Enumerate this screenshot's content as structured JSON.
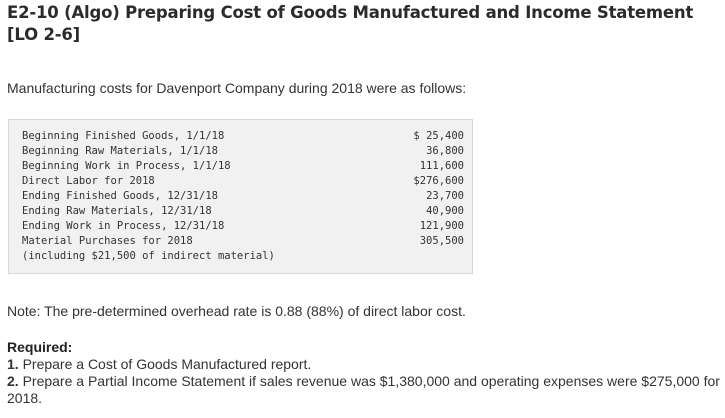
{
  "title": "E2-10 (Algo) Preparing Cost of Goods Manufactured and Income Statement [LO 2-6]",
  "intro": "Manufacturing costs for Davenport Company during 2018 were as follows:",
  "costs": [
    {
      "label": "Beginning Finished Goods, 1/1/18",
      "amount": "$ 25,400"
    },
    {
      "label": "Beginning Raw Materials, 1/1/18",
      "amount": "36,800"
    },
    {
      "label": "Beginning Work in Process, 1/1/18",
      "amount": "111,600"
    },
    {
      "label": "Direct Labor for 2018",
      "amount": "$276,600"
    },
    {
      "label": "Ending Finished Goods, 12/31/18",
      "amount": "23,700"
    },
    {
      "label": "Ending Raw Materials, 12/31/18",
      "amount": "40,900"
    },
    {
      "label": "Ending Work in Process, 12/31/18",
      "amount": "121,900"
    },
    {
      "label": "Material Purchases for 2018",
      "amount": "305,500"
    },
    {
      "label": "(including $21,500 of indirect material)",
      "amount": ""
    }
  ],
  "note": "Note: The pre-determined overhead rate is 0.88 (88%) of direct labor cost.",
  "required": {
    "heading": "Required:",
    "items": [
      {
        "number": "1.",
        "text": "Prepare a Cost of Goods Manufactured report."
      },
      {
        "number": "2.",
        "text": "Prepare a Partial Income Statement if sales revenue was $1,380,000 and operating expenses were $275,000 for 2018."
      }
    ]
  }
}
